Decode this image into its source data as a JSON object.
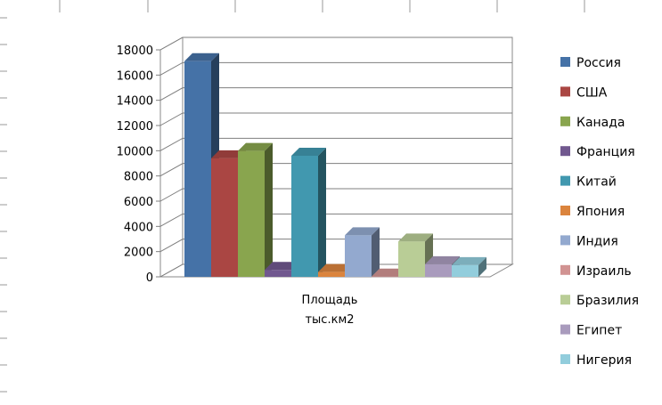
{
  "chart_data": {
    "type": "bar",
    "variant": "3d-clustered-column",
    "categories": [
      "Площадь тыс.км2"
    ],
    "category_lines": [
      "Площадь",
      "тыс.км2"
    ],
    "series": [
      {
        "name": "Россия",
        "values": [
          17100
        ],
        "color": "#4572A7"
      },
      {
        "name": "США",
        "values": [
          9400
        ],
        "color": "#AA4643"
      },
      {
        "name": "Канада",
        "values": [
          9980
        ],
        "color": "#89A54E"
      },
      {
        "name": "Франция",
        "values": [
          550
        ],
        "color": "#71588F"
      },
      {
        "name": "Китай",
        "values": [
          9600
        ],
        "color": "#4198AF"
      },
      {
        "name": "Япония",
        "values": [
          378
        ],
        "color": "#DB843D"
      },
      {
        "name": "Индия",
        "values": [
          3290
        ],
        "color": "#93A9CF"
      },
      {
        "name": "Израиль",
        "values": [
          22
        ],
        "color": "#D19392"
      },
      {
        "name": "Бразилия",
        "values": [
          2800
        ],
        "color": "#B9CD96"
      },
      {
        "name": "Египет",
        "values": [
          1000
        ],
        "color": "#A99BBD"
      },
      {
        "name": "Нигерия",
        "values": [
          924
        ],
        "color": "#92CDDC"
      }
    ],
    "yticks": [
      "0",
      "2000",
      "4000",
      "6000",
      "8000",
      "10000",
      "12000",
      "14000",
      "16000",
      "18000"
    ],
    "ylim": [
      0,
      18000
    ],
    "grid": true,
    "legend_position": "right"
  }
}
